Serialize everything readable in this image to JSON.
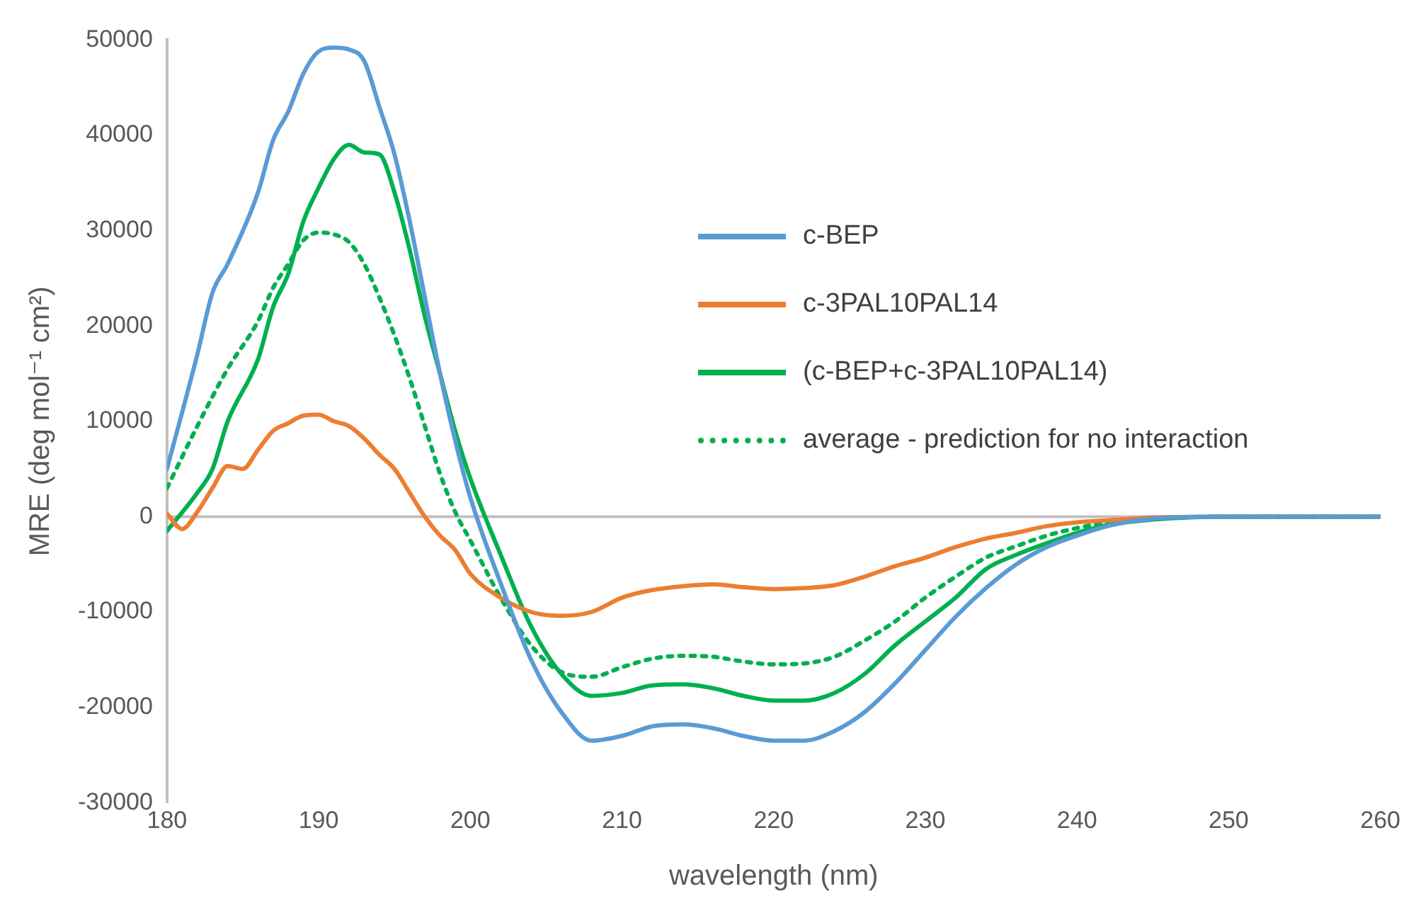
{
  "chart_data": {
    "type": "line",
    "xlabel": "wavelength (nm)",
    "ylabel": "MRE (deg mol⁻¹ cm²)",
    "xlim": [
      180,
      260
    ],
    "xticks": [
      180,
      190,
      200,
      210,
      220,
      230,
      240,
      250,
      260
    ],
    "ylim": [
      -30000,
      50000
    ],
    "yticks": [
      -30000,
      -20000,
      -10000,
      0,
      10000,
      20000,
      30000,
      40000,
      50000
    ],
    "grid": false,
    "ref_lines": [
      {
        "axis": "y",
        "value": 0,
        "color": "#bfbfbf"
      }
    ],
    "legend": "right",
    "marker": "none",
    "series": [
      {
        "name": "c-BEP",
        "color": "#5b9bd5",
        "line_style": "solid",
        "x": [
          180,
          182,
          183,
          184,
          186,
          187,
          188,
          189,
          190,
          191,
          192,
          193,
          194,
          195,
          196,
          197,
          198,
          199,
          200,
          202,
          204,
          206,
          208,
          210,
          212,
          214,
          216,
          218,
          220,
          222,
          224,
          226,
          228,
          230,
          232,
          234,
          236,
          238,
          240,
          242,
          244,
          246,
          250,
          255,
          260
        ],
        "values": [
          5000,
          17000,
          23500,
          26500,
          34000,
          39500,
          42500,
          46500,
          48800,
          49200,
          49000,
          47800,
          43000,
          38000,
          31000,
          23000,
          15000,
          8000,
          2000,
          -7000,
          -15000,
          -20500,
          -23500,
          -23000,
          -22000,
          -21800,
          -22200,
          -23000,
          -23500,
          -23500,
          -22500,
          -20500,
          -17500,
          -14000,
          -10500,
          -7500,
          -5000,
          -3200,
          -2000,
          -1000,
          -400,
          -100,
          0,
          0,
          0
        ]
      },
      {
        "name": "c-3PAL10PAL14",
        "color": "#ed7d31",
        "line_style": "solid",
        "x": [
          180,
          181,
          182,
          183,
          184,
          185,
          186,
          187,
          188,
          189,
          190,
          191,
          192,
          193,
          194,
          195,
          196,
          197,
          198,
          199,
          200,
          202,
          204,
          206,
          208,
          210,
          212,
          214,
          216,
          218,
          220,
          222,
          224,
          226,
          228,
          230,
          232,
          234,
          236,
          238,
          240,
          242,
          245,
          250,
          260
        ],
        "values": [
          300,
          -1300,
          500,
          3000,
          5300,
          5000,
          7000,
          9000,
          9800,
          10600,
          10700,
          10000,
          9500,
          8200,
          6500,
          5000,
          2500,
          0,
          -2000,
          -3500,
          -6000,
          -8500,
          -10000,
          -10400,
          -10000,
          -8500,
          -7700,
          -7300,
          -7100,
          -7400,
          -7600,
          -7500,
          -7200,
          -6300,
          -5200,
          -4300,
          -3200,
          -2300,
          -1700,
          -1000,
          -600,
          -400,
          -100,
          0,
          0
        ]
      },
      {
        "name": "(c-BEP+c-3PAL10PAL14)",
        "color": "#00b050",
        "line_style": "solid",
        "x": [
          180,
          182,
          183,
          184,
          186,
          187,
          188,
          189,
          190,
          191,
          192,
          193,
          194,
          195,
          196,
          197,
          198,
          199,
          200,
          202,
          204,
          206,
          208,
          210,
          212,
          214,
          216,
          218,
          220,
          222,
          224,
          226,
          228,
          230,
          232,
          234,
          236,
          238,
          240,
          242,
          245,
          250,
          260
        ],
        "values": [
          -1500,
          2500,
          5000,
          10000,
          16500,
          22000,
          25500,
          31000,
          34500,
          37500,
          39000,
          38200,
          38000,
          34000,
          28000,
          21000,
          15000,
          9000,
          4000,
          -4000,
          -11500,
          -16500,
          -18800,
          -18500,
          -17700,
          -17600,
          -18000,
          -18800,
          -19300,
          -19300,
          -18500,
          -16500,
          -13500,
          -11000,
          -8500,
          -5500,
          -4000,
          -2800,
          -1700,
          -900,
          -300,
          0,
          0
        ]
      },
      {
        "name": "average - prediction for no interaction",
        "color": "#00b050",
        "line_style": "dotted",
        "x": [
          180,
          182,
          184,
          186,
          187,
          188,
          189,
          190,
          191,
          192,
          193,
          194,
          195,
          196,
          197,
          198,
          199,
          200,
          202,
          204,
          206,
          208,
          210,
          212,
          214,
          216,
          218,
          220,
          222,
          224,
          226,
          228,
          230,
          232,
          234,
          236,
          238,
          240,
          242,
          245,
          250,
          260
        ],
        "values": [
          3000,
          9500,
          15500,
          20500,
          24000,
          26500,
          29000,
          29800,
          29600,
          28800,
          26500,
          23000,
          19000,
          14500,
          9500,
          4500,
          500,
          -2500,
          -8500,
          -13500,
          -16300,
          -16800,
          -15800,
          -14900,
          -14600,
          -14700,
          -15200,
          -15500,
          -15400,
          -14700,
          -13000,
          -11000,
          -8500,
          -6300,
          -4300,
          -3100,
          -2000,
          -1200,
          -600,
          -200,
          0,
          0
        ]
      }
    ]
  }
}
